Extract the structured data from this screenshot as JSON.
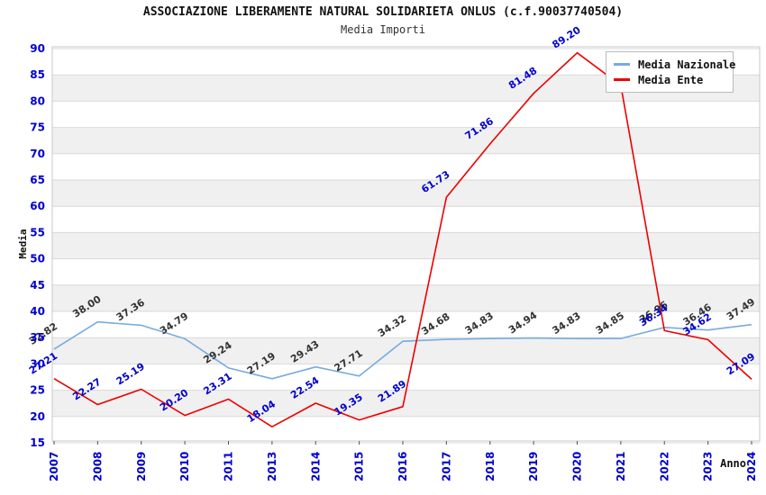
{
  "title": "ASSOCIAZIONE LIBERAMENTE NATURAL SOLIDARIETA ONLUS (c.f.90037740504)",
  "subtitle": "Media Importi",
  "colors": {
    "axis_text": "#0000cc",
    "grid_line": "#d9d9d9",
    "band_fill": "#f0f0f0",
    "plot_border": "#c8c8c8",
    "tick_mark": "#555555",
    "nazionale_line": "#78abdf",
    "nazionale_label": "#333333",
    "ente_line": "#ee0000",
    "ente_label": "#0000cc"
  },
  "chart_data": {
    "type": "line",
    "title": "ASSOCIAZIONE LIBERAMENTE NATURAL SOLIDARIETA ONLUS (c.f.90037740504)",
    "subtitle": "Media Importi",
    "xlabel": "Anno",
    "ylabel": "Media",
    "ylim": [
      15,
      90
    ],
    "ytick_step": 5,
    "grid": "striped-horizontal-bands",
    "legend_position": "top-right",
    "categories": [
      "2007",
      "2008",
      "2009",
      "2010",
      "2011",
      "2013",
      "2014",
      "2015",
      "2016",
      "2017",
      "2018",
      "2019",
      "2020",
      "2021",
      "2022",
      "2023",
      "2024"
    ],
    "series": [
      {
        "name": "Media Nazionale",
        "values": [
          32.82,
          38.0,
          37.36,
          34.79,
          29.24,
          27.19,
          29.43,
          27.71,
          34.32,
          34.68,
          34.83,
          34.94,
          34.83,
          34.85,
          36.96,
          36.46,
          37.49
        ],
        "labels": [
          "32.82",
          "38.00",
          "37.36",
          "34.79",
          "29.24",
          "27.19",
          "29.43",
          "27.71",
          "34.32",
          "34.68",
          "34.83",
          "34.94",
          "34.83",
          "34.85",
          "36.96",
          "36.46",
          "37.49"
        ]
      },
      {
        "name": "Media Ente",
        "values": [
          27.21,
          22.27,
          25.19,
          20.2,
          23.31,
          18.04,
          22.54,
          19.35,
          21.89,
          61.73,
          71.86,
          81.48,
          89.2,
          83.0,
          36.34,
          34.62,
          27.09
        ],
        "labels": [
          "27.21",
          "22.27",
          "25.19",
          "20.20",
          "23.31",
          "18.04",
          "22.54",
          "19.35",
          "21.89",
          "61.73",
          "71.86",
          "81.48",
          "89.20",
          "",
          "36.34",
          "34.62",
          "27.09"
        ],
        "note_index_13": "vertex hidden behind legend, value estimated from pixels, no label shown"
      }
    ]
  }
}
